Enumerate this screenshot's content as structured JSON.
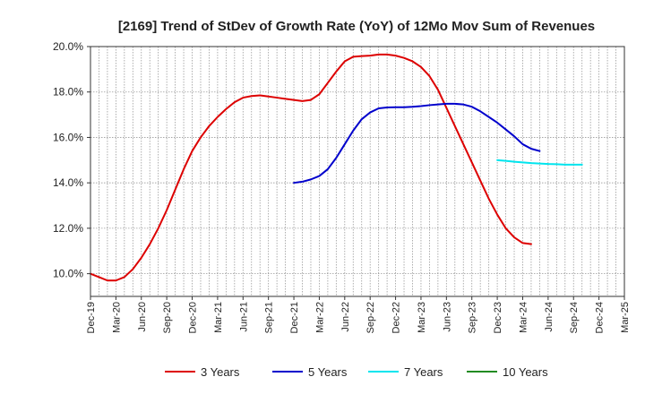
{
  "chart_data": {
    "type": "line",
    "title": "[2169]  Trend of StDev of Growth Rate (YoY) of 12Mo Mov Sum of Revenues",
    "xlabel": "",
    "ylabel": "",
    "ylim": [
      9.0,
      20.0
    ],
    "y_ticks": [
      {
        "value": 10.0,
        "label": "10.0%"
      },
      {
        "value": 12.0,
        "label": "12.0%"
      },
      {
        "value": 14.0,
        "label": "14.0%"
      },
      {
        "value": 16.0,
        "label": "16.0%"
      },
      {
        "value": 18.0,
        "label": "18.0%"
      },
      {
        "value": 20.0,
        "label": "20.0%"
      }
    ],
    "x_ticks": [
      "Dec-19",
      "Mar-20",
      "Jun-20",
      "Sep-20",
      "Dec-20",
      "Mar-21",
      "Jun-21",
      "Sep-21",
      "Dec-21",
      "Mar-22",
      "Jun-22",
      "Sep-22",
      "Dec-22",
      "Mar-23",
      "Jun-23",
      "Sep-23",
      "Dec-23",
      "Mar-24",
      "Jun-24",
      "Sep-24",
      "Dec-24",
      "Mar-25"
    ],
    "grid": true,
    "legend_position": "bottom",
    "series": [
      {
        "name": "3 Years",
        "color": "#dd0000",
        "start_index": 0,
        "values": [
          10.0,
          9.85,
          9.7,
          9.7,
          9.85,
          10.2,
          10.7,
          11.3,
          12.0,
          12.8,
          13.7,
          14.6,
          15.4,
          16.0,
          16.5,
          16.9,
          17.25,
          17.55,
          17.75,
          17.82,
          17.85,
          17.8,
          17.75,
          17.7,
          17.65,
          17.6,
          17.65,
          17.9,
          18.4,
          18.9,
          19.35,
          19.55,
          19.58,
          19.6,
          19.65,
          19.65,
          19.6,
          19.5,
          19.35,
          19.1,
          18.7,
          18.1,
          17.3,
          16.5,
          15.7,
          14.9,
          14.1,
          13.3,
          12.6,
          12.0,
          11.6,
          11.35,
          11.3
        ]
      },
      {
        "name": "5 Years",
        "color": "#0000cc",
        "start_index": 24,
        "values": [
          14.0,
          14.05,
          14.15,
          14.3,
          14.6,
          15.1,
          15.7,
          16.3,
          16.8,
          17.1,
          17.28,
          17.32,
          17.33,
          17.33,
          17.35,
          17.38,
          17.42,
          17.45,
          17.48,
          17.48,
          17.45,
          17.35,
          17.15,
          16.9,
          16.65,
          16.35,
          16.05,
          15.7,
          15.5,
          15.4
        ]
      },
      {
        "name": "7 Years",
        "color": "#00e5ee",
        "start_index": 48,
        "values": [
          15.0,
          14.97,
          14.93,
          14.9,
          14.87,
          14.85,
          14.83,
          14.82,
          14.8,
          14.8,
          14.8
        ]
      },
      {
        "name": "10 Years",
        "color": "#228b22",
        "start_index": 0,
        "values": []
      }
    ]
  }
}
